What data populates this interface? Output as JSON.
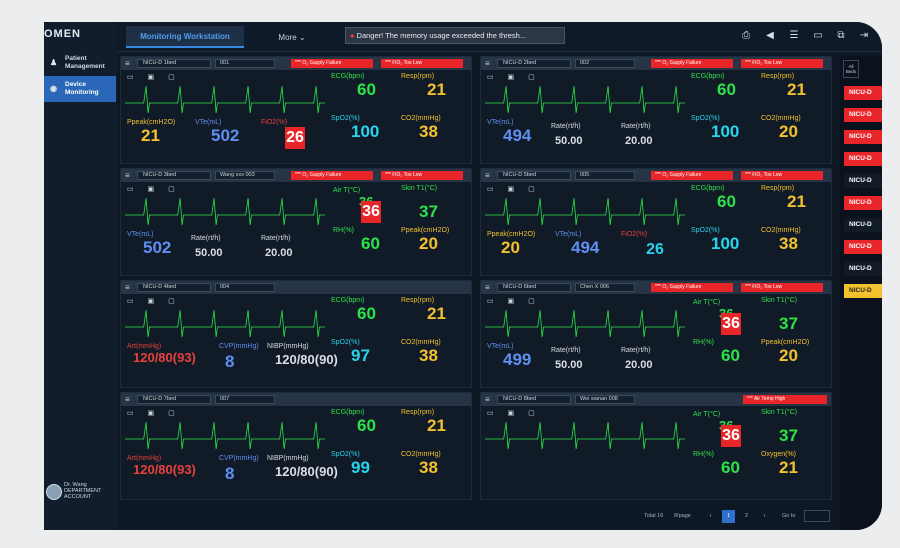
{
  "app": {
    "logo": "OMEN"
  },
  "nav": {
    "items": [
      {
        "label": "Patient Management",
        "icon": "person-icon"
      },
      {
        "label": "Device Monitoring",
        "icon": "monitor-icon"
      }
    ],
    "user": {
      "name": "Dr. Wang",
      "dept": "DEPARTMENT ACCOUNT"
    }
  },
  "topbar": {
    "active_tab": "Monitoring Workstation",
    "more": "More ⌄",
    "alarm": "Danger! The memory usage exceeded the thresh..."
  },
  "alarms": {
    "o2": "*** O₂ Supply Failure",
    "fio2": "*** FiO₂ Too Low",
    "airtemp": "*** Air Temp High"
  },
  "labels": {
    "ecg": "ECG(bpm)",
    "resp": "Resp(rpm)",
    "spo2": "SpO2(%)",
    "co2": "CO2(mmHg)",
    "ppeak": "Ppeak(cmH2O)",
    "vte": "VTe(mL)",
    "fio2": "FiO2(%)",
    "rate": "Rate(rt/h)",
    "airt": "Air T(°C)",
    "skin": "Skin T1(°C)",
    "rh": "RH(%)",
    "art": "Art(mmHg)",
    "cvp": "CVP(mmHg)",
    "nibp": "NIBP(mmHg)",
    "oxygen": "Oxygen(%)"
  },
  "panels": [
    {
      "bed": "NICU-D 1bed",
      "patient": "001",
      "alarms": [
        "o2",
        "fio2"
      ],
      "vals": {
        "ecg": "60",
        "resp": "21",
        "ppeak": "21",
        "vte": "502",
        "fio2": "26",
        "spo2": "100",
        "co2": "38"
      }
    },
    {
      "bed": "NICU-D 2bed",
      "patient": "002",
      "alarms": [
        "o2",
        "fio2"
      ],
      "vals": {
        "ecg": "60",
        "resp": "21",
        "vte": "494",
        "rate1": "50.00",
        "rate2": "20.00",
        "spo2": "100",
        "co2": "20"
      }
    },
    {
      "bed": "NICU-D 3bed",
      "patient": "Wang xxx 003",
      "alarms": [
        "o2",
        "fio2"
      ],
      "vals": {
        "airt": "36",
        "skin": "37",
        "vte": "502",
        "rate1": "50.00",
        "rate2": "20.00",
        "rh": "60",
        "ppeak": "20"
      }
    },
    {
      "bed": "NICU-D 5bed",
      "patient": "005",
      "alarms": [
        "o2",
        "fio2"
      ],
      "vals": {
        "ecg": "60",
        "resp": "21",
        "ppeak": "20",
        "vte": "494",
        "fio2": "26",
        "spo2": "100",
        "co2": "38"
      }
    },
    {
      "bed": "NICU-D 4bed",
      "patient": "004",
      "alarms": [],
      "vals": {
        "ecg": "60",
        "resp": "21",
        "art": "120/80(93)",
        "cvp": "8",
        "nibp": "120/80(90)",
        "spo2": "97",
        "co2": "38"
      }
    },
    {
      "bed": "NICU-D 6bed",
      "patient": "Chen X 006",
      "alarms": [
        "o2",
        "fio2"
      ],
      "vals": {
        "airt": "36",
        "skin": "37",
        "vte": "499",
        "rate1": "50.00",
        "rate2": "20.00",
        "rh": "60",
        "ppeak": "20"
      }
    },
    {
      "bed": "NICU-D 7bed",
      "patient": "007",
      "alarms": [],
      "vals": {
        "ecg": "60",
        "resp": "21",
        "art": "120/80(93)",
        "cvp": "8",
        "nibp": "120/80(90)",
        "spo2": "99",
        "co2": "38"
      }
    },
    {
      "bed": "NICU-D 8bed",
      "patient": "Wei wanan 008",
      "alarms": [
        "airtemp"
      ],
      "vals": {
        "airt": "36",
        "skin": "37",
        "rh": "60",
        "oxygen": "21"
      }
    }
  ],
  "right": {
    "header": "All Beds",
    "badges": [
      {
        "label": "NICU-D",
        "color": "#e8262a"
      },
      {
        "label": "NICU-D",
        "color": "#e8262a"
      },
      {
        "label": "NICU-D",
        "color": "#e8262a"
      },
      {
        "label": "NICU-D",
        "color": "#e8262a"
      },
      {
        "label": "NICU-D",
        "color": "#111b28"
      },
      {
        "label": "NICU-D",
        "color": "#e8262a"
      },
      {
        "label": "NICU-D",
        "color": "#111b28"
      },
      {
        "label": "NICU-D",
        "color": "#e8262a"
      },
      {
        "label": "NICU-D",
        "color": "#111b28"
      },
      {
        "label": "NICU-D",
        "color": "#f2c12e"
      }
    ]
  },
  "pager": {
    "total": "Total 16",
    "size": "8/page",
    "p1": "1",
    "p2": "2",
    "goto": "Go to"
  }
}
